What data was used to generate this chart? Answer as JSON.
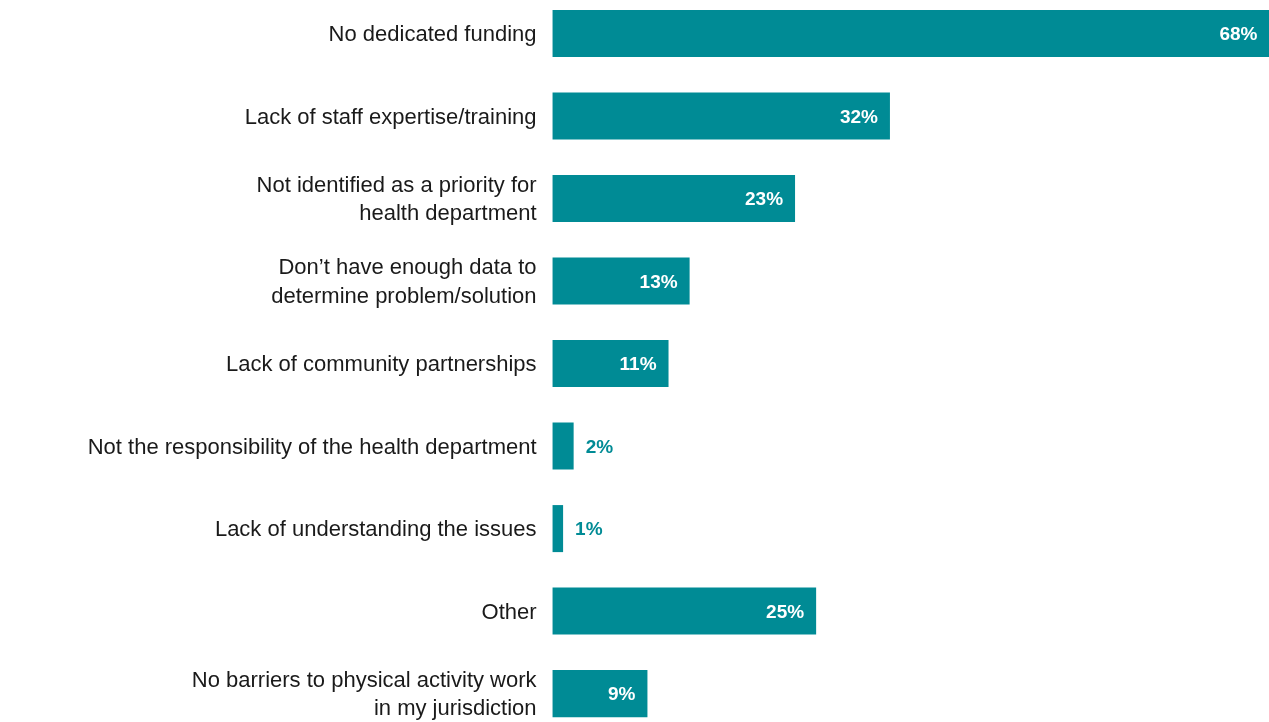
{
  "chart_data": {
    "type": "bar",
    "orientation": "horizontal",
    "categories": [
      "No dedicated funding",
      "Lack of staff expertise/training",
      "Not identified as a priority for\nhealth department",
      "Don’t have enough data to\ndetermine problem/solution",
      "Lack of community partnerships",
      "Not the responsibility of the health department",
      "Lack of understanding the issues",
      "Other",
      "No barriers to physical activity work\nin my jurisdiction"
    ],
    "values": [
      68,
      32,
      23,
      13,
      11,
      2,
      1,
      25,
      9
    ],
    "value_labels": [
      "68%",
      "32%",
      "23%",
      "13%",
      "11%",
      "2%",
      "1%",
      "25%",
      "9%"
    ],
    "color": "#008b95",
    "grid": false
  }
}
